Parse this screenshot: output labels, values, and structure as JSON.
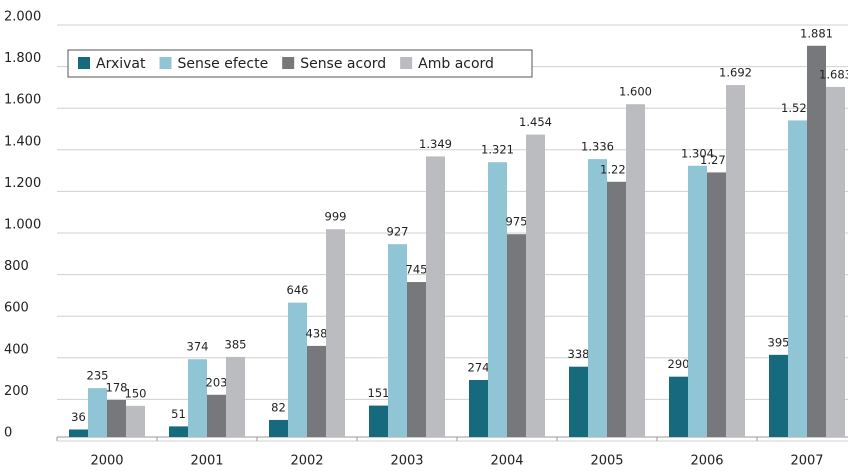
{
  "chart_data": {
    "type": "bar",
    "categories": [
      "2000",
      "2001",
      "2002",
      "2003",
      "2004",
      "2005",
      "2006",
      "2007"
    ],
    "series": [
      {
        "name": "Arxivat",
        "color": "#17697e",
        "values": [
          36,
          51,
          82,
          151,
          274,
          338,
          290,
          395
        ],
        "value_labels": [
          "36",
          "51",
          "82",
          "151",
          "274",
          "338",
          "290",
          "395"
        ]
      },
      {
        "name": "Sense efecte",
        "color": "#8fc5d5",
        "values": [
          235,
          374,
          646,
          927,
          1321,
          1336,
          1304,
          1522
        ],
        "value_labels": [
          "235",
          "374",
          "646",
          "927",
          "1.321",
          "1.336",
          "1.304",
          "1.522"
        ]
      },
      {
        "name": "Sense acord",
        "color": "#76787c",
        "values": [
          178,
          203,
          438,
          745,
          975,
          1227,
          1272,
          1881
        ],
        "value_labels": [
          "178",
          "203",
          "438",
          "745",
          "975",
          "1.227",
          "1.272",
          "1.881"
        ]
      },
      {
        "name": "Amb acord",
        "color": "#babcbf",
        "values": [
          150,
          385,
          999,
          1349,
          1454,
          1600,
          1692,
          1683
        ],
        "value_labels": [
          "150",
          "385",
          "999",
          "1.349",
          "1.454",
          "1.600",
          "1.692",
          "1.683"
        ]
      }
    ],
    "ylim": [
      0,
      2000
    ],
    "yticks": [
      0,
      200,
      400,
      600,
      800,
      {
        "value": 1000,
        "label": "1.000"
      },
      {
        "value": 1200,
        "label": "1.200"
      },
      {
        "value": 1400,
        "label": "1.400"
      },
      {
        "value": 1600,
        "label": "1.600"
      },
      {
        "value": 1800,
        "label": "1.800"
      },
      {
        "value": 2000,
        "label": "2.000"
      }
    ],
    "grid": true,
    "legend": "top-left"
  }
}
